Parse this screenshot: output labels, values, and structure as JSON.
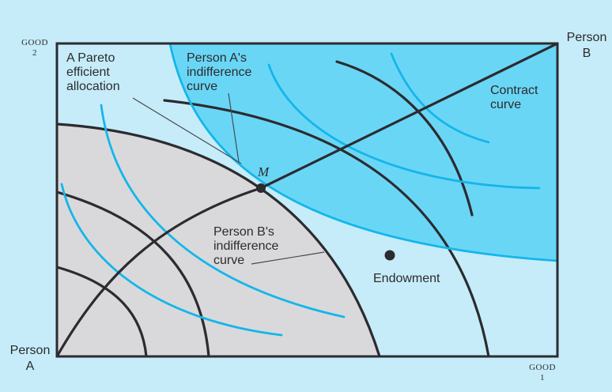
{
  "axes": {
    "good2_line1": "GOOD",
    "good2_line2": "2",
    "good1_line1": "GOOD",
    "good1_line2": "1"
  },
  "origins": {
    "person_a_line1": "Person",
    "person_a_line2": "A",
    "person_b_line1": "Person",
    "person_b_line2": "B"
  },
  "annotations": {
    "pareto_line1": "A Pareto",
    "pareto_line2": "efficient",
    "pareto_line3": "allocation",
    "a_indiff_line1": "Person A's",
    "a_indiff_line2": "indifference",
    "a_indiff_line3": "curve",
    "contract_line1": "Contract",
    "contract_line2": "curve",
    "point_m": "M",
    "b_indiff_line1": "Person B's",
    "b_indiff_line2": "indifference",
    "b_indiff_line3": "curve",
    "endowment": "Endowment"
  },
  "colors": {
    "background": "#c6ecfa",
    "region_a_fill": "#d9d9db",
    "region_b_fill": "#6ad6f6",
    "a_curves": "#2b2b30",
    "b_curves": "#14b6ea",
    "box_border": "#2b2b30"
  }
}
